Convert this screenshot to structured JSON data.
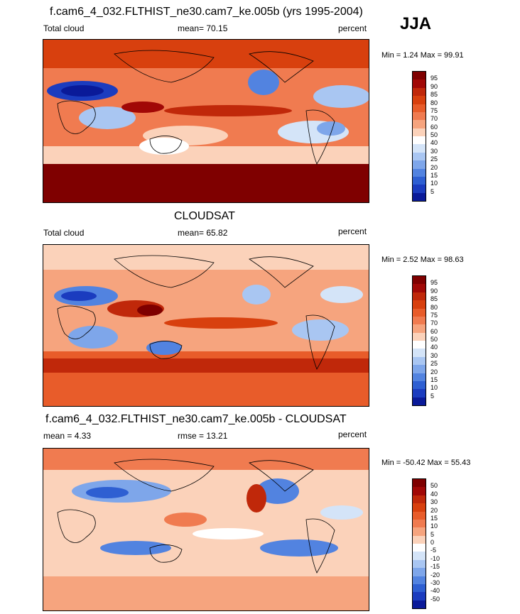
{
  "season": "JJA",
  "panels": [
    {
      "title": "f.cam6_4_032.FLTHIST_ne30.cam7_ke.005b (yrs 1995-2004)",
      "left_label": "Total cloud",
      "center_label": "mean=  70.15",
      "right_label": "percent",
      "minmax": "Min =   1.24 Max =  99.91",
      "colorbar_labels": [
        "95",
        "90",
        "85",
        "80",
        "75",
        "70",
        "60",
        "50",
        "40",
        "30",
        "25",
        "20",
        "15",
        "10",
        "5"
      ],
      "colors": [
        "#7f0000",
        "#a10806",
        "#c0280a",
        "#d8400e",
        "#e85c2a",
        "#f07b50",
        "#f6a47e",
        "#fbd2ba",
        "#ffffff",
        "#d4e4f8",
        "#a9c6f2",
        "#7ea6ea",
        "#5283e0",
        "#2e5fd2",
        "#1b3cbf",
        "#0a1a99"
      ],
      "cbar_top": 100,
      "cbar_height": 182
    },
    {
      "title": "CLOUDSAT",
      "left_label": "Total cloud",
      "center_label": "mean=  65.82",
      "right_label": "percent",
      "minmax": "Min =   2.52 Max =  98.63",
      "colorbar_labels": [
        "95",
        "90",
        "85",
        "80",
        "75",
        "70",
        "60",
        "50",
        "40",
        "30",
        "25",
        "20",
        "15",
        "10",
        "5"
      ],
      "colors": [
        "#7f0000",
        "#a10806",
        "#c0280a",
        "#d8400e",
        "#e85c2a",
        "#f07b50",
        "#f6a47e",
        "#fbd2ba",
        "#ffffff",
        "#d4e4f8",
        "#a9c6f2",
        "#7ea6ea",
        "#5283e0",
        "#2e5fd2",
        "#1b3cbf",
        "#0a1a99"
      ],
      "cbar_top": 388,
      "cbar_height": 182
    },
    {
      "title": "f.cam6_4_032.FLTHIST_ne30.cam7_ke.005b - CLOUDSAT",
      "left_label": "mean =   4.33",
      "center_label": "rmse =  13.21",
      "right_label": "percent",
      "minmax": "Min = -50.42 Max =  55.43",
      "colorbar_labels": [
        "50",
        "40",
        "30",
        "20",
        "15",
        "10",
        "5",
        "0",
        "-5",
        "-10",
        "-15",
        "-20",
        "-30",
        "-40",
        "-50"
      ],
      "colors": [
        "#7f0000",
        "#a10806",
        "#c0280a",
        "#d8400e",
        "#e85c2a",
        "#f07b50",
        "#f6a47e",
        "#fbd2ba",
        "#ffffff",
        "#d4e4f8",
        "#a9c6f2",
        "#7ea6ea",
        "#5283e0",
        "#2e5fd2",
        "#1b3cbf",
        "#0a1a99"
      ],
      "cbar_top": 674,
      "cbar_height": 182
    }
  ],
  "chart_data": [
    {
      "type": "heatmap",
      "title": "f.cam6_4_032.FLTHIST_ne30.cam7_ke.005b (yrs 1995-2004)",
      "variable": "Total cloud",
      "units": "percent",
      "mean": 70.15,
      "min": 1.24,
      "max": 99.91,
      "levels": [
        5,
        10,
        15,
        20,
        25,
        30,
        40,
        50,
        60,
        70,
        75,
        80,
        85,
        90,
        95
      ]
    },
    {
      "type": "heatmap",
      "title": "CLOUDSAT",
      "variable": "Total cloud",
      "units": "percent",
      "mean": 65.82,
      "min": 2.52,
      "max": 98.63,
      "levels": [
        5,
        10,
        15,
        20,
        25,
        30,
        40,
        50,
        60,
        70,
        75,
        80,
        85,
        90,
        95
      ]
    },
    {
      "type": "heatmap",
      "title": "f.cam6_4_032.FLTHIST_ne30.cam7_ke.005b - CLOUDSAT",
      "units": "percent",
      "mean": 4.33,
      "rmse": 13.21,
      "min": -50.42,
      "max": 55.43,
      "levels": [
        -50,
        -40,
        -30,
        -20,
        -15,
        -10,
        -5,
        0,
        5,
        10,
        15,
        20,
        30,
        40,
        50
      ]
    }
  ]
}
